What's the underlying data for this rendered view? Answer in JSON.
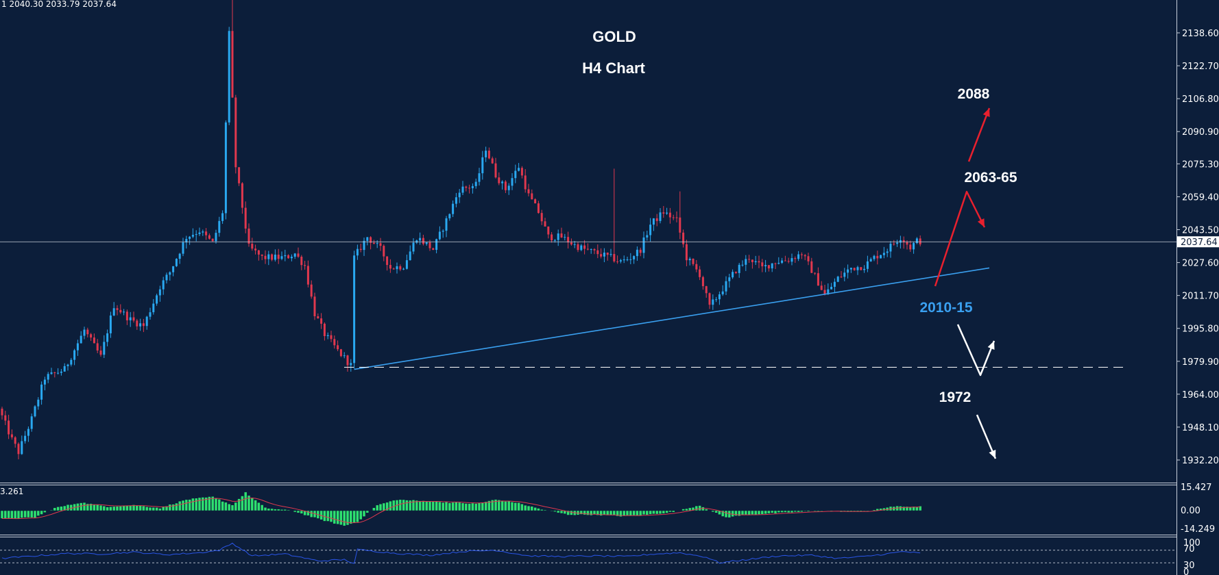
{
  "header": {
    "ohlc": "1 2040.30 2033.79 2037.64",
    "title": "GOLD",
    "subtitle": "H4 Chart"
  },
  "colors": {
    "background": "#0c1e3a",
    "bull": "#2aa8f0",
    "bear": "#e0384e",
    "trend": "#3aa0f0",
    "macd_hist": "#2ee070",
    "macd_signal": "#e0384e",
    "rsi": "#2a55e8",
    "arrow_up": "#e8202e",
    "arrow_down": "#ffffff",
    "label_support": "#3aa0f0"
  },
  "chart_data": [
    {
      "type": "candlestick",
      "panel": "price",
      "y_ticks": [
        "2138.60",
        "2122.70",
        "2106.80",
        "2090.90",
        "2075.30",
        "2059.40",
        "2043.50",
        "2027.60",
        "2011.70",
        "1995.80",
        "1979.90",
        "1964.00",
        "1948.10",
        "1932.20"
      ],
      "current_price": "2037.64",
      "waypoints": [
        [
          0,
          1957
        ],
        [
          4,
          1942
        ],
        [
          6,
          1936
        ],
        [
          10,
          1952
        ],
        [
          14,
          1972
        ],
        [
          20,
          1976
        ],
        [
          26,
          1995
        ],
        [
          31,
          1982
        ],
        [
          35,
          2007
        ],
        [
          40,
          2000
        ],
        [
          44,
          1997
        ],
        [
          49,
          2016
        ],
        [
          52,
          2023
        ],
        [
          57,
          2040
        ],
        [
          61,
          2043
        ],
        [
          65,
          2037
        ],
        [
          68,
          2052
        ],
        [
          70,
          2138
        ],
        [
          72,
          2074
        ],
        [
          76,
          2035
        ],
        [
          80,
          2030
        ],
        [
          87,
          2030
        ],
        [
          90,
          2032
        ],
        [
          93,
          2026
        ],
        [
          96,
          2003
        ],
        [
          99,
          1993
        ],
        [
          103,
          1985
        ],
        [
          107,
          1978
        ],
        [
          108,
          2030
        ],
        [
          112,
          2040
        ],
        [
          116,
          2034
        ],
        [
          119,
          2025
        ],
        [
          123,
          2026
        ],
        [
          127,
          2040
        ],
        [
          132,
          2034
        ],
        [
          136,
          2048
        ],
        [
          140,
          2063
        ],
        [
          145,
          2065
        ],
        [
          148,
          2083
        ],
        [
          151,
          2070
        ],
        [
          154,
          2063
        ],
        [
          158,
          2074
        ],
        [
          161,
          2060
        ],
        [
          164,
          2052
        ],
        [
          167,
          2040
        ],
        [
          171,
          2040
        ],
        [
          175,
          2036
        ],
        [
          178,
          2034
        ],
        [
          182,
          2032
        ],
        [
          186,
          2030
        ],
        [
          189,
          2028
        ],
        [
          192,
          2030
        ],
        [
          195,
          2034
        ],
        [
          198,
          2046
        ],
        [
          202,
          2052
        ],
        [
          206,
          2048
        ],
        [
          209,
          2030
        ],
        [
          213,
          2022
        ],
        [
          216,
          2006
        ],
        [
          220,
          2015
        ],
        [
          224,
          2024
        ],
        [
          228,
          2030
        ],
        [
          232,
          2025
        ],
        [
          236,
          2028
        ],
        [
          240,
          2029
        ],
        [
          244,
          2032
        ],
        [
          247,
          2024
        ],
        [
          251,
          2012
        ],
        [
          255,
          2020
        ],
        [
          259,
          2025
        ],
        [
          263,
          2026
        ],
        [
          266,
          2030
        ],
        [
          270,
          2034
        ],
        [
          274,
          2040
        ],
        [
          277,
          2035
        ],
        [
          279,
          2038
        ]
      ],
      "trendline": {
        "from": [
          107,
          1976
        ],
        "to": [
          300,
          2025
        ]
      },
      "support_line": 1977
    },
    {
      "type": "histogram",
      "panel": "macd",
      "y_ticks": [
        "15.427",
        "0.00",
        "-14.249"
      ],
      "corner_label": "3.261",
      "waypoints": [
        [
          0,
          -6
        ],
        [
          10,
          -5
        ],
        [
          16,
          2
        ],
        [
          24,
          6
        ],
        [
          32,
          3
        ],
        [
          40,
          4
        ],
        [
          48,
          2
        ],
        [
          56,
          8
        ],
        [
          64,
          10
        ],
        [
          70,
          4
        ],
        [
          74,
          13
        ],
        [
          80,
          2
        ],
        [
          88,
          0
        ],
        [
          96,
          -6
        ],
        [
          104,
          -11
        ],
        [
          108,
          -8
        ],
        [
          114,
          4
        ],
        [
          120,
          8
        ],
        [
          128,
          7
        ],
        [
          136,
          6
        ],
        [
          144,
          5
        ],
        [
          150,
          8
        ],
        [
          156,
          6
        ],
        [
          164,
          1
        ],
        [
          172,
          -3
        ],
        [
          180,
          -3
        ],
        [
          188,
          -4
        ],
        [
          196,
          -3
        ],
        [
          204,
          -1
        ],
        [
          212,
          4
        ],
        [
          216,
          -1
        ],
        [
          220,
          -5
        ],
        [
          226,
          -3
        ],
        [
          234,
          -2
        ],
        [
          242,
          -1
        ],
        [
          250,
          0
        ],
        [
          258,
          -1
        ],
        [
          264,
          0
        ],
        [
          270,
          3
        ],
        [
          279,
          3
        ]
      ]
    },
    {
      "type": "line",
      "panel": "rsi",
      "y_ticks": [
        "100",
        "70",
        "30",
        "0"
      ],
      "waypoints": [
        [
          0,
          44
        ],
        [
          10,
          52
        ],
        [
          20,
          60
        ],
        [
          30,
          58
        ],
        [
          40,
          64
        ],
        [
          50,
          56
        ],
        [
          60,
          62
        ],
        [
          66,
          70
        ],
        [
          70,
          92
        ],
        [
          76,
          52
        ],
        [
          86,
          58
        ],
        [
          96,
          36
        ],
        [
          104,
          40
        ],
        [
          107,
          28
        ],
        [
          108,
          72
        ],
        [
          120,
          60
        ],
        [
          130,
          54
        ],
        [
          140,
          66
        ],
        [
          150,
          70
        ],
        [
          160,
          52
        ],
        [
          170,
          50
        ],
        [
          180,
          52
        ],
        [
          190,
          50
        ],
        [
          198,
          58
        ],
        [
          206,
          62
        ],
        [
          214,
          48
        ],
        [
          218,
          30
        ],
        [
          226,
          40
        ],
        [
          236,
          52
        ],
        [
          246,
          54
        ],
        [
          254,
          44
        ],
        [
          262,
          50
        ],
        [
          270,
          60
        ],
        [
          274,
          66
        ],
        [
          279,
          60
        ]
      ]
    }
  ],
  "annotations": {
    "target_high": "2088",
    "target_mid": "2063-65",
    "support_zone": "2010-15",
    "target_low": "1972"
  }
}
